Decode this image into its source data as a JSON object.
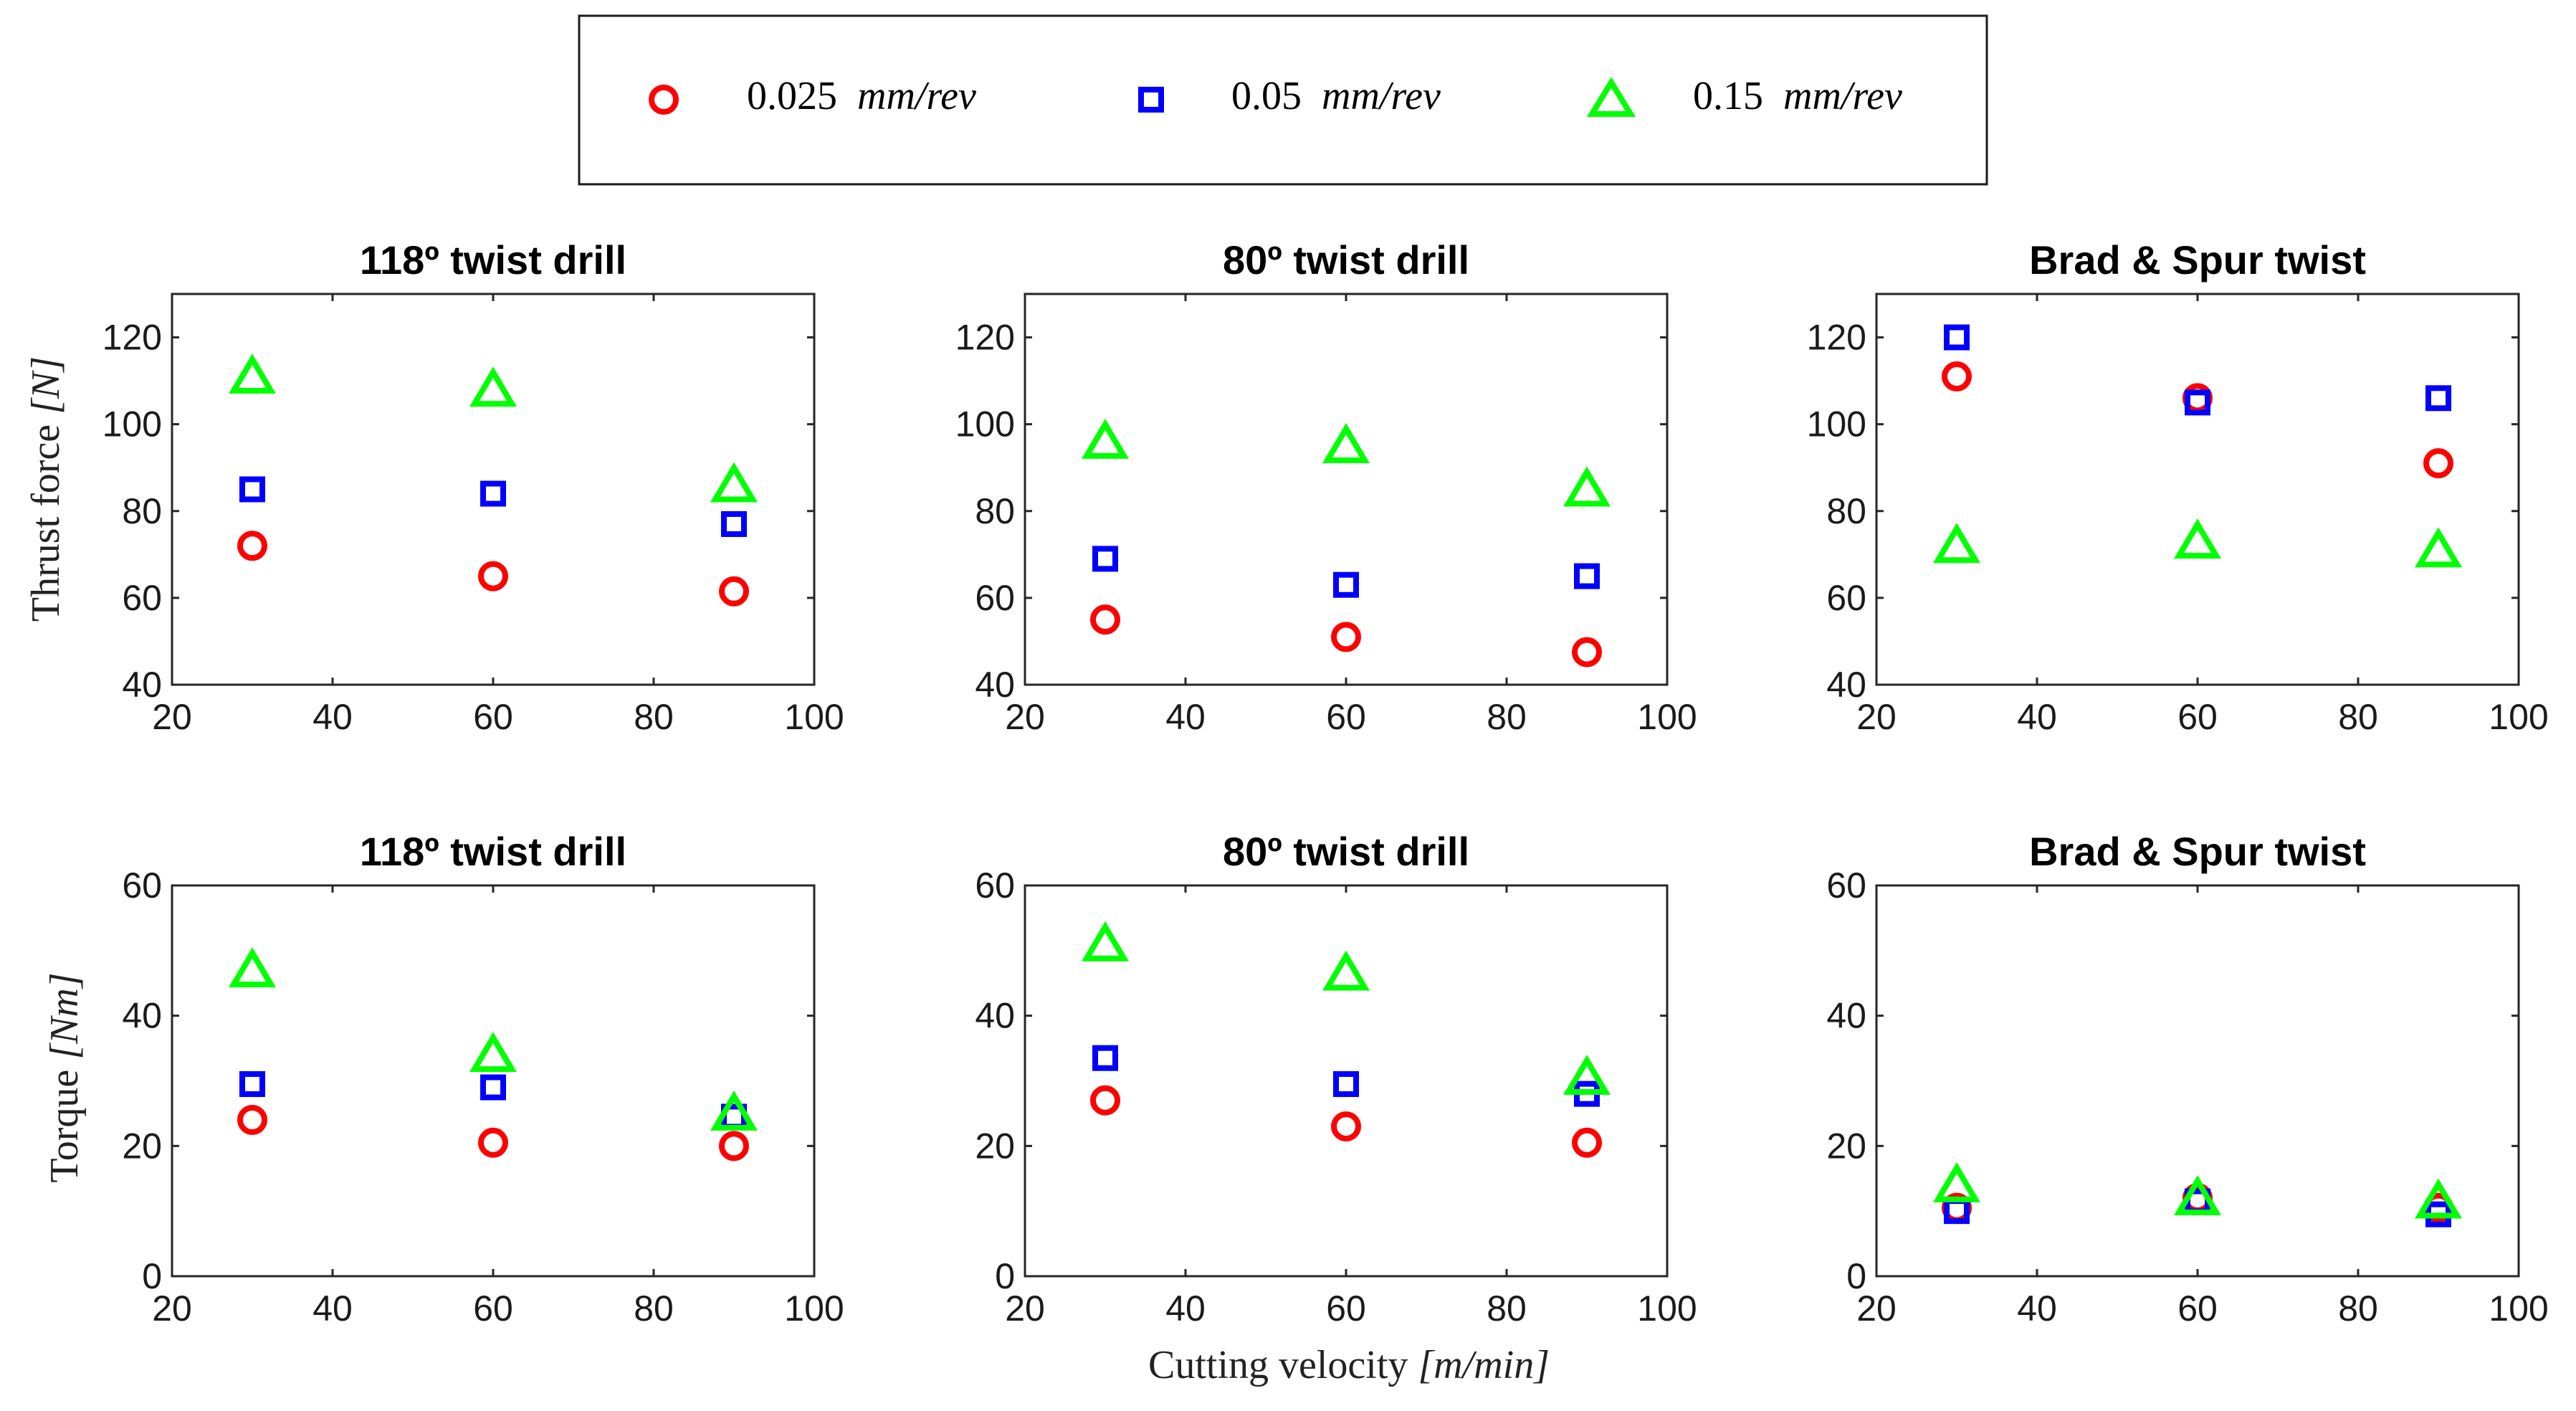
{
  "legend": {
    "entries": [
      {
        "value": "0.025",
        "unit": "mm/rev",
        "marker": "circle",
        "color": "#ff0000"
      },
      {
        "value": "0.05",
        "unit": "mm/rev",
        "marker": "square",
        "color": "#0000ff"
      },
      {
        "value": "0.15",
        "unit": "mm/rev",
        "marker": "triangle",
        "color": "#00ff00"
      }
    ]
  },
  "axes_text": {
    "xlabel_prefix": "Cutting velocity ",
    "xlabel_unit": "[m/min]",
    "ylabel_thrust_prefix": "Thrust force ",
    "ylabel_thrust_unit": "[N]",
    "ylabel_torque_prefix": "Torque ",
    "ylabel_torque_unit": "[Nm]"
  },
  "chart_data": [
    {
      "type": "scatter",
      "title": "118º twist drill",
      "xlabel": "",
      "ylabel": "Thrust force [N]",
      "xlim": [
        20,
        100
      ],
      "ylim": [
        40,
        130
      ],
      "xticks": [
        20,
        40,
        60,
        80,
        100
      ],
      "yticks": [
        40,
        60,
        80,
        100,
        120
      ],
      "x": [
        30,
        60,
        90
      ],
      "series": [
        {
          "name": "0.025 mm/rev",
          "values": [
            72,
            65,
            61.5
          ]
        },
        {
          "name": "0.05 mm/rev",
          "values": [
            85,
            84,
            77
          ]
        },
        {
          "name": "0.15 mm/rev",
          "values": [
            111,
            108,
            86
          ]
        }
      ]
    },
    {
      "type": "scatter",
      "title": "80º twist drill",
      "xlabel": "",
      "ylabel": "",
      "xlim": [
        20,
        100
      ],
      "ylim": [
        40,
        130
      ],
      "xticks": [
        20,
        40,
        60,
        80,
        100
      ],
      "yticks": [
        40,
        60,
        80,
        100,
        120
      ],
      "x": [
        30,
        60,
        90
      ],
      "series": [
        {
          "name": "0.025 mm/rev",
          "values": [
            55,
            51,
            47.5
          ]
        },
        {
          "name": "0.05 mm/rev",
          "values": [
            69,
            63,
            65
          ]
        },
        {
          "name": "0.15 mm/rev",
          "values": [
            96,
            95,
            85
          ]
        }
      ]
    },
    {
      "type": "scatter",
      "title": "Brad & Spur twist",
      "xlabel": "",
      "ylabel": "",
      "xlim": [
        20,
        100
      ],
      "ylim": [
        40,
        130
      ],
      "xticks": [
        20,
        40,
        60,
        80,
        100
      ],
      "yticks": [
        40,
        60,
        80,
        100,
        120
      ],
      "x": [
        30,
        60,
        90
      ],
      "series": [
        {
          "name": "0.025 mm/rev",
          "values": [
            111,
            106,
            91
          ]
        },
        {
          "name": "0.05 mm/rev",
          "values": [
            120,
            105,
            106
          ]
        },
        {
          "name": "0.15 mm/rev",
          "values": [
            72,
            73,
            71
          ]
        }
      ]
    },
    {
      "type": "scatter",
      "title": "118º twist drill",
      "xlabel": "",
      "ylabel": "Torque [Nm]",
      "xlim": [
        20,
        100
      ],
      "ylim": [
        0,
        60
      ],
      "xticks": [
        20,
        40,
        60,
        80,
        100
      ],
      "yticks": [
        0,
        20,
        40,
        60
      ],
      "x": [
        30,
        60,
        90
      ],
      "series": [
        {
          "name": "0.025 mm/rev",
          "values": [
            24,
            20.5,
            20
          ]
        },
        {
          "name": "0.05 mm/rev",
          "values": [
            29.5,
            29,
            24.5
          ]
        },
        {
          "name": "0.15 mm/rev",
          "values": [
            47,
            34,
            25
          ]
        }
      ]
    },
    {
      "type": "scatter",
      "title": "80º twist drill",
      "xlabel": "Cutting velocity [m/min]",
      "ylabel": "",
      "xlim": [
        20,
        100
      ],
      "ylim": [
        0,
        60
      ],
      "xticks": [
        20,
        40,
        60,
        80,
        100
      ],
      "yticks": [
        0,
        20,
        40,
        60
      ],
      "x": [
        30,
        60,
        90
      ],
      "series": [
        {
          "name": "0.025 mm/rev",
          "values": [
            27,
            23,
            20.5
          ]
        },
        {
          "name": "0.05 mm/rev",
          "values": [
            33.5,
            29.5,
            28
          ]
        },
        {
          "name": "0.15 mm/rev",
          "values": [
            51,
            46.5,
            30.5
          ]
        }
      ]
    },
    {
      "type": "scatter",
      "title": "Brad & Spur twist",
      "xlabel": "",
      "ylabel": "",
      "xlim": [
        20,
        100
      ],
      "ylim": [
        0,
        60
      ],
      "xticks": [
        20,
        40,
        60,
        80,
        100
      ],
      "yticks": [
        0,
        20,
        40,
        60
      ],
      "x": [
        30,
        60,
        90
      ],
      "series": [
        {
          "name": "0.025 mm/rev",
          "values": [
            10.5,
            12,
            10.5
          ]
        },
        {
          "name": "0.05 mm/rev",
          "values": [
            10,
            11.5,
            9.5
          ]
        },
        {
          "name": "0.15 mm/rev",
          "values": [
            14,
            12,
            11.5
          ]
        }
      ]
    }
  ]
}
